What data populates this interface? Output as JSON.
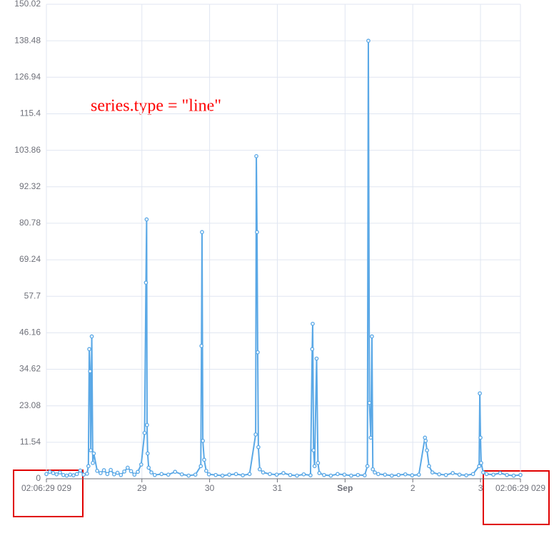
{
  "chart_data": {
    "type": "line",
    "annotation": "series.type = \"line\"",
    "x": [
      0,
      0.05,
      0.1,
      0.15,
      0.2,
      0.25,
      0.3,
      0.35,
      0.4,
      0.45,
      0.5,
      0.55,
      0.6,
      0.62,
      0.633,
      0.645,
      0.655,
      0.67,
      0.685,
      0.7,
      0.75,
      0.8,
      0.85,
      0.9,
      0.95,
      1.0,
      1.05,
      1.1,
      1.15,
      1.2,
      1.25,
      1.3,
      1.35,
      1.4,
      1.45,
      1.47,
      1.48,
      1.486,
      1.495,
      1.51,
      1.55,
      1.6,
      1.7,
      1.8,
      1.9,
      2.0,
      2.1,
      2.2,
      2.28,
      2.29,
      2.298,
      2.31,
      2.33,
      2.36,
      2.4,
      2.5,
      2.6,
      2.7,
      2.8,
      2.9,
      3.0,
      3.09,
      3.1,
      3.11,
      3.12,
      3.13,
      3.15,
      3.2,
      3.3,
      3.4,
      3.5,
      3.6,
      3.7,
      3.8,
      3.9,
      3.925,
      3.932,
      3.945,
      3.96,
      3.99,
      4.01,
      4.03,
      4.1,
      4.2,
      4.3,
      4.4,
      4.5,
      4.6,
      4.7,
      4.74,
      4.754,
      4.77,
      4.79,
      4.807,
      4.82,
      4.85,
      4.9,
      5.0,
      5.1,
      5.2,
      5.3,
      5.4,
      5.5,
      5.59,
      5.6,
      5.62,
      5.65,
      5.7,
      5.8,
      5.9,
      6.0,
      6.1,
      6.2,
      6.3,
      6.39,
      6.4,
      6.41,
      6.42,
      6.45,
      6.5,
      6.6,
      6.7,
      6.8,
      6.9,
      7.0
    ],
    "values": [
      1.5,
      2.2,
      1.8,
      1.4,
      2.0,
      1.2,
      1.0,
      1.3,
      1.1,
      1.5,
      2.6,
      1.3,
      1.6,
      4.0,
      41,
      34,
      9,
      45,
      5,
      8,
      2.5,
      1.8,
      2.7,
      1.5,
      2.8,
      1.4,
      1.9,
      1.2,
      2.3,
      3.5,
      2.4,
      1.3,
      2.2,
      4.5,
      14.5,
      62,
      82,
      17,
      8,
      3.5,
      2.0,
      1.2,
      1.5,
      1.3,
      2.2,
      1.4,
      1.0,
      1.3,
      4.0,
      42,
      78,
      12,
      6,
      2.5,
      1.4,
      1.2,
      1.0,
      1.3,
      1.5,
      1.1,
      1.5,
      14,
      102,
      78,
      40,
      10,
      3.0,
      2.0,
      1.5,
      1.3,
      1.8,
      1.2,
      1.0,
      1.4,
      1.1,
      41,
      49,
      9,
      4.0,
      38,
      5.0,
      1.8,
      1.2,
      1.0,
      1.5,
      1.3,
      1.0,
      1.2,
      1.1,
      4.0,
      138.48,
      24,
      13,
      45,
      3.0,
      2.0,
      1.5,
      1.3,
      1.0,
      1.2,
      1.4,
      1.1,
      1.3,
      13,
      12,
      9,
      4.0,
      2.0,
      1.4,
      1.2,
      1.8,
      1.3,
      1.1,
      1.5,
      4.0,
      27,
      13,
      5.0,
      2.0,
      1.5,
      1.3,
      1.8,
      1.2,
      1.0,
      1.2
    ],
    "color": "#5aa8e6",
    "xlim": [
      0,
      7
    ],
    "xticks": [
      {
        "value": 0,
        "label": "02:06:29 029"
      },
      {
        "value": 1.41,
        "label": "29"
      },
      {
        "value": 2.41,
        "label": "30"
      },
      {
        "value": 3.41,
        "label": "31"
      },
      {
        "value": 4.41,
        "label": "Sep"
      },
      {
        "value": 5.41,
        "label": "2"
      },
      {
        "value": 6.41,
        "label": "3"
      },
      {
        "value": 7,
        "label": "02:06:29 029"
      }
    ],
    "ylim": [
      0,
      150.02
    ],
    "yticks": [
      0,
      11.54,
      23.08,
      34.62,
      46.16,
      57.7,
      69.24,
      80.78,
      92.32,
      103.86,
      115.4,
      126.94,
      138.48,
      150.02
    ],
    "grid": true
  }
}
